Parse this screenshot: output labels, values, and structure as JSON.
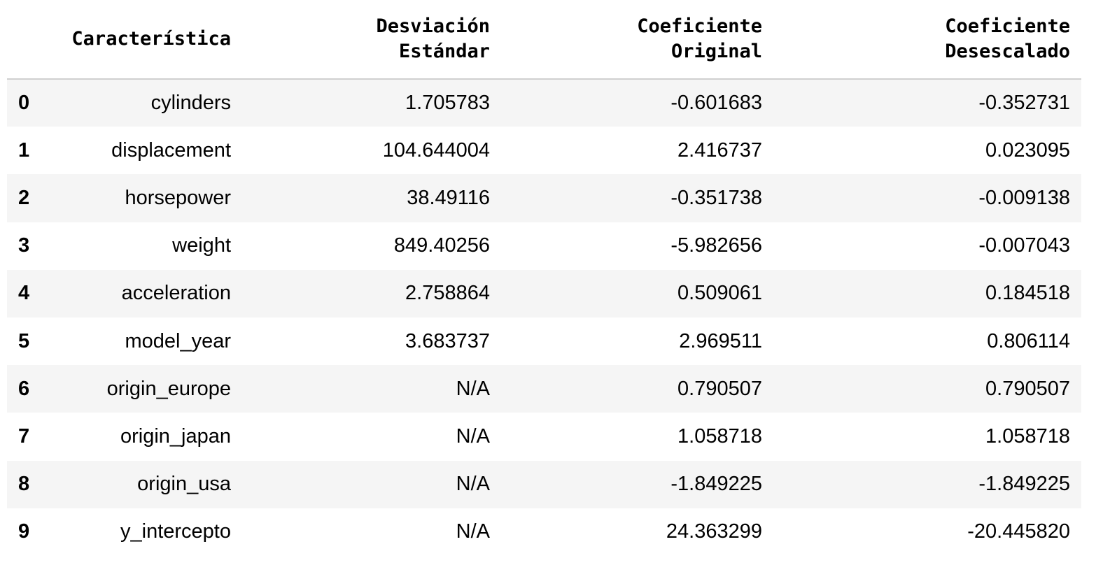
{
  "table": {
    "index_header": "",
    "headers": [
      [
        "Característica"
      ],
      [
        "Desviación",
        "Estándar"
      ],
      [
        "Coeficiente",
        "Original"
      ],
      [
        "Coeficiente",
        "Desescalado"
      ]
    ],
    "rows": [
      {
        "index": "0",
        "feature": "cylinders",
        "std": "1.705783",
        "orig": "-0.601683",
        "desc": "-0.352731"
      },
      {
        "index": "1",
        "feature": "displacement",
        "std": "104.644004",
        "orig": "2.416737",
        "desc": "0.023095"
      },
      {
        "index": "2",
        "feature": "horsepower",
        "std": "38.49116",
        "orig": "-0.351738",
        "desc": "-0.009138"
      },
      {
        "index": "3",
        "feature": "weight",
        "std": "849.40256",
        "orig": "-5.982656",
        "desc": "-0.007043"
      },
      {
        "index": "4",
        "feature": "acceleration",
        "std": "2.758864",
        "orig": "0.509061",
        "desc": "0.184518"
      },
      {
        "index": "5",
        "feature": "model_year",
        "std": "3.683737",
        "orig": "2.969511",
        "desc": "0.806114"
      },
      {
        "index": "6",
        "feature": "origin_europe",
        "std": "N/A",
        "orig": "0.790507",
        "desc": "0.790507"
      },
      {
        "index": "7",
        "feature": "origin_japan",
        "std": "N/A",
        "orig": "1.058718",
        "desc": "1.058718"
      },
      {
        "index": "8",
        "feature": "origin_usa",
        "std": "N/A",
        "orig": "-1.849225",
        "desc": "-1.849225"
      },
      {
        "index": "9",
        "feature": "y_intercepto",
        "std": "N/A",
        "orig": "24.363299",
        "desc": "-20.445820"
      }
    ]
  }
}
